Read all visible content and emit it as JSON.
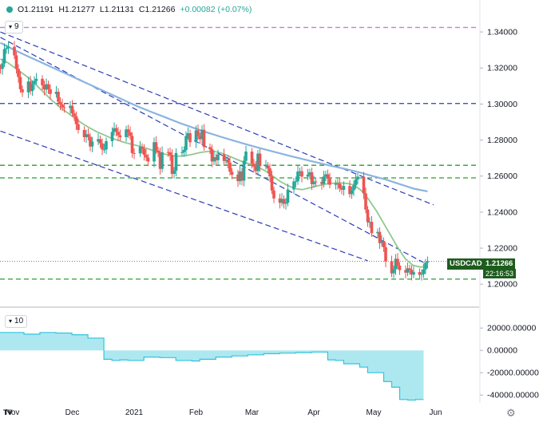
{
  "ohlc": {
    "open": "O1.21191",
    "high": "H1.21277",
    "low": "L1.21131",
    "close": "C1.21266",
    "change": "+0.00082 (+0.07%)"
  },
  "panes": {
    "main_label": "9",
    "indicator_label": "10"
  },
  "ticker": {
    "symbol": "USDCAD",
    "price": "1.21266",
    "countdown": "22:16:53"
  },
  "logo_text": "TV",
  "settings_icon": "gear-icon",
  "colors": {
    "candle_up": "#26a69a",
    "candle_down": "#ef5350",
    "ma_short": "#8fc98f",
    "ma_long": "#8ab4e0",
    "trend_line": "#2c3cb8",
    "support": "#2e9e2e",
    "top_line": "#c77fd9",
    "area_fill": "#92e0eb",
    "area_line": "#33c4dc"
  },
  "chart_data": [
    {
      "type": "candlestick",
      "symbol": "USDCAD",
      "x_ticks": [
        "Nov",
        "Dec",
        "2021",
        "Feb",
        "Mar",
        "Apr",
        "May",
        "Jun"
      ],
      "y_ticks": [
        "1.20000",
        "1.22000",
        "1.24000",
        "1.26000",
        "1.28000",
        "1.30000",
        "1.32000",
        "1.34000"
      ],
      "ylim": [
        1.197,
        1.348
      ],
      "x_start": "2020-10-26",
      "grid": false,
      "last_price": 1.21266,
      "x": [
        "2020-10-26",
        "2020-10-27",
        "2020-10-28",
        "2020-10-29",
        "2020-10-30",
        "2020-11-02",
        "2020-11-03",
        "2020-11-04",
        "2020-11-05",
        "2020-11-06",
        "2020-11-09",
        "2020-11-10",
        "2020-11-11",
        "2020-11-12",
        "2020-11-13",
        "2020-11-16",
        "2020-11-17",
        "2020-11-18",
        "2020-11-19",
        "2020-11-20",
        "2020-11-23",
        "2020-11-24",
        "2020-11-25",
        "2020-11-26",
        "2020-11-27",
        "2020-11-30",
        "2020-12-01",
        "2020-12-02",
        "2020-12-03",
        "2020-12-04",
        "2020-12-07",
        "2020-12-08",
        "2020-12-09",
        "2020-12-10",
        "2020-12-11",
        "2020-12-14",
        "2020-12-15",
        "2020-12-16",
        "2020-12-17",
        "2020-12-18",
        "2020-12-21",
        "2020-12-22",
        "2020-12-23",
        "2020-12-24",
        "2020-12-25",
        "2020-12-28",
        "2020-12-29",
        "2020-12-30",
        "2020-12-31",
        "2021-01-01",
        "2021-01-04",
        "2021-01-05",
        "2021-01-06",
        "2021-01-07",
        "2021-01-08",
        "2021-01-11",
        "2021-01-12",
        "2021-01-13",
        "2021-01-14",
        "2021-01-15",
        "2021-01-18",
        "2021-01-19",
        "2021-01-20",
        "2021-01-21",
        "2021-01-22",
        "2021-01-25",
        "2021-01-26",
        "2021-01-27",
        "2021-01-28",
        "2021-01-29",
        "2021-02-01",
        "2021-02-02",
        "2021-02-03",
        "2021-02-04",
        "2021-02-05",
        "2021-02-08",
        "2021-02-09",
        "2021-02-10",
        "2021-02-11",
        "2021-02-12",
        "2021-02-15",
        "2021-02-16",
        "2021-02-17",
        "2021-02-18",
        "2021-02-19",
        "2021-02-22",
        "2021-02-23",
        "2021-02-24",
        "2021-02-25",
        "2021-02-26",
        "2021-03-01",
        "2021-03-02",
        "2021-03-03",
        "2021-03-04",
        "2021-03-05",
        "2021-03-08",
        "2021-03-09",
        "2021-03-10",
        "2021-03-11",
        "2021-03-12",
        "2021-03-15",
        "2021-03-16",
        "2021-03-17",
        "2021-03-18",
        "2021-03-19",
        "2021-03-22",
        "2021-03-23",
        "2021-03-24",
        "2021-03-25",
        "2021-03-26",
        "2021-03-29",
        "2021-03-30",
        "2021-03-31",
        "2021-04-01",
        "2021-04-02",
        "2021-04-05",
        "2021-04-06",
        "2021-04-07",
        "2021-04-08",
        "2021-04-09",
        "2021-04-12",
        "2021-04-13",
        "2021-04-14",
        "2021-04-15",
        "2021-04-16",
        "2021-04-19",
        "2021-04-20",
        "2021-04-21",
        "2021-04-22",
        "2021-04-23",
        "2021-04-26",
        "2021-04-27",
        "2021-04-28",
        "2021-04-29",
        "2021-04-30",
        "2021-05-03",
        "2021-05-04",
        "2021-05-05",
        "2021-05-06",
        "2021-05-07",
        "2021-05-10",
        "2021-05-11",
        "2021-05-12",
        "2021-05-13",
        "2021-05-14",
        "2021-05-17",
        "2021-05-18",
        "2021-05-19",
        "2021-05-20",
        "2021-05-21",
        "2021-05-24",
        "2021-05-25",
        "2021-05-26",
        "2021-05-27",
        "2021-05-28"
      ],
      "close": [
        1.3195,
        1.3225,
        1.3305,
        1.331,
        1.3318,
        1.327,
        1.3195,
        1.315,
        1.3082,
        1.3065,
        1.3125,
        1.3072,
        1.3112,
        1.3128,
        1.314,
        1.3104,
        1.308,
        1.311,
        1.3082,
        1.3056,
        1.3068,
        1.3012,
        1.2998,
        1.2982,
        1.2978,
        1.299,
        1.2948,
        1.2932,
        1.2888,
        1.2856,
        1.2816,
        1.2832,
        1.2818,
        1.2764,
        1.2792,
        1.2805,
        1.2782,
        1.2748,
        1.2748,
        1.2794,
        1.2845,
        1.2866,
        1.2846,
        1.2826,
        1.2816,
        1.2859,
        1.2844,
        1.2823,
        1.2728,
        1.2726,
        1.2762,
        1.2751,
        1.2718,
        1.2703,
        1.2681,
        1.2788,
        1.2742,
        1.2732,
        1.264,
        1.2733,
        1.2732,
        1.2717,
        1.2612,
        1.263,
        1.2728,
        1.2733,
        1.2745,
        1.2822,
        1.2838,
        1.2788,
        1.2854,
        1.2821,
        1.2805,
        1.2857,
        1.2761,
        1.2749,
        1.2681,
        1.2705,
        1.2688,
        1.272,
        1.2684,
        1.2691,
        1.2675,
        1.2624,
        1.2608,
        1.2572,
        1.2626,
        1.2575,
        1.2685,
        1.2736,
        1.2669,
        1.2652,
        1.2628,
        1.2725,
        1.2656,
        1.2658,
        1.2643,
        1.2598,
        1.252,
        1.2476,
        1.2452,
        1.2473,
        1.2446,
        1.2452,
        1.2526,
        1.257,
        1.2571,
        1.2625,
        1.2627,
        1.2597,
        1.2608,
        1.2621,
        1.2555,
        1.257,
        1.2568,
        1.2556,
        1.2598,
        1.261,
        1.2586,
        1.2552,
        1.2559,
        1.2557,
        1.2532,
        1.2524,
        1.2545,
        1.25,
        1.2521,
        1.2549,
        1.2581,
        1.2597,
        1.2504,
        1.2414,
        1.2344,
        1.2346,
        1.2283,
        1.229,
        1.2228,
        1.224,
        1.2205,
        1.2126,
        1.206,
        1.2083,
        1.2141,
        1.2103,
        1.2078,
        1.2064,
        1.2088,
        1.2079,
        1.2053,
        1.2067,
        1.2052,
        1.2056,
        1.2082,
        1.212,
        1.2127
      ]
    },
    {
      "type": "line",
      "name": "short moving average",
      "values": [
        1.325,
        1.323,
        1.32,
        1.317,
        1.314,
        1.31,
        1.306,
        1.302,
        1.2985,
        1.2955,
        1.2925,
        1.2895,
        1.287,
        1.2848,
        1.283,
        1.2812,
        1.2798,
        1.2785,
        1.2775,
        1.2765,
        1.2752,
        1.2738,
        1.2725,
        1.2715,
        1.271,
        1.2712,
        1.272,
        1.273,
        1.2736,
        1.2738,
        1.2728,
        1.2712,
        1.2694,
        1.2678,
        1.2665,
        1.265,
        1.2628,
        1.26,
        1.257,
        1.2548,
        1.253,
        1.2525,
        1.2535,
        1.2545,
        1.2555,
        1.256,
        1.2562,
        1.256,
        1.255,
        1.252,
        1.247,
        1.241,
        1.234,
        1.227,
        1.22,
        1.214,
        1.2105,
        1.2095,
        1.21
      ]
    },
    {
      "type": "line",
      "name": "long moving average",
      "values": [
        1.334,
        1.33,
        1.3265,
        1.323,
        1.3195,
        1.316,
        1.3125,
        1.309,
        1.3055,
        1.302,
        1.2985,
        1.2955,
        1.2925,
        1.2895,
        1.2868,
        1.2842,
        1.2818,
        1.2795,
        1.2773,
        1.2752,
        1.2732,
        1.2712,
        1.2693,
        1.2675,
        1.2657,
        1.264,
        1.2622,
        1.26,
        1.258,
        1.2555,
        1.253,
        1.2515
      ]
    },
    {
      "type": "area",
      "pane": "indicator",
      "y_ticks": [
        "20000.00000",
        "0.00000",
        "-20000.00000",
        "-40000.00000"
      ],
      "ylim": [
        -47000,
        28000
      ],
      "values": [
        16000,
        16000,
        16000,
        14500,
        14500,
        16000,
        16000,
        15500,
        15500,
        14000,
        14000,
        11000,
        11000,
        -8000,
        -9000,
        -8500,
        -9000,
        -9000,
        -6000,
        -6000,
        -6500,
        -6500,
        -9000,
        -9000,
        -9500,
        -8000,
        -8000,
        -6000,
        -6000,
        -5000,
        -5000,
        -4000,
        -4000,
        -3000,
        -3000,
        -2500,
        -2500,
        -2000,
        -2000,
        -1500,
        -1500,
        -8500,
        -9000,
        -12000,
        -12000,
        -15000,
        -20000,
        -20000,
        -28000,
        -33000,
        -44000,
        -44500,
        -44000,
        -44000
      ]
    }
  ]
}
